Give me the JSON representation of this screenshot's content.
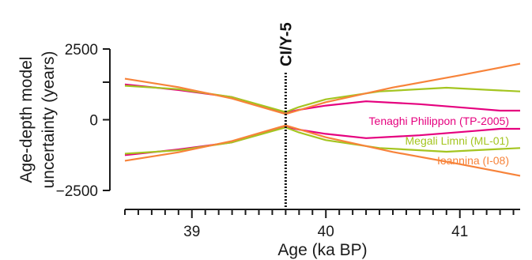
{
  "chart_data": {
    "type": "line",
    "title": "",
    "xlabel": "Age (ka BP)",
    "ylabel": [
      "Age-depth model",
      "uncertainty (years)"
    ],
    "xlim": [
      38.5,
      41.45
    ],
    "ylim": [
      -2500,
      2500
    ],
    "x_ticks": [
      39,
      40,
      41
    ],
    "x_tick_labels": [
      "39",
      "40",
      "41"
    ],
    "y_ticks": [
      -2500,
      0,
      2500
    ],
    "y_tick_labels": [
      "−2500",
      "0",
      "2500"
    ],
    "x_minor_step": 0.1,
    "grid": false,
    "legend": "inline labels at right",
    "marker": {
      "x": 39.7,
      "label": "CI/Y-5",
      "style": "dotted vertical line"
    },
    "series": [
      {
        "name": "Tenaghi Philippon (TP-2005)",
        "color": "#e5007e",
        "upper": {
          "x": [
            38.5,
            38.9,
            39.3,
            39.7,
            39.8,
            40.0,
            40.3,
            40.7,
            41.1,
            41.3,
            41.45
          ],
          "y": [
            1250,
            1050,
            800,
            250,
            350,
            500,
            650,
            550,
            400,
            320,
            320
          ]
        },
        "lower": {
          "x": [
            38.5,
            38.9,
            39.3,
            39.7,
            39.8,
            40.0,
            40.3,
            40.7,
            41.1,
            41.3,
            41.45
          ],
          "y": [
            -1250,
            -1050,
            -800,
            -250,
            -350,
            -500,
            -650,
            -550,
            -400,
            -320,
            -320
          ]
        }
      },
      {
        "name": "Megali Limni (ML-01)",
        "color": "#a4c520",
        "upper": {
          "x": [
            38.5,
            38.9,
            39.3,
            39.7,
            39.8,
            40.0,
            40.4,
            40.9,
            41.2,
            41.45
          ],
          "y": [
            1200,
            1080,
            800,
            270,
            450,
            720,
            1000,
            1130,
            1060,
            1000
          ]
        },
        "lower": {
          "x": [
            38.5,
            38.9,
            39.3,
            39.7,
            39.8,
            40.0,
            40.4,
            40.9,
            41.2,
            41.45
          ],
          "y": [
            -1200,
            -1080,
            -800,
            -270,
            -450,
            -720,
            -1000,
            -1130,
            -1060,
            -1000
          ]
        }
      },
      {
        "name": "Ioannina (I-08)",
        "color": "#f7833a",
        "upper": {
          "x": [
            38.5,
            38.9,
            39.3,
            39.7,
            40.0,
            40.5,
            41.0,
            41.45
          ],
          "y": [
            1450,
            1150,
            750,
            200,
            620,
            1140,
            1570,
            1980
          ]
        },
        "lower": {
          "x": [
            38.5,
            38.9,
            39.3,
            39.7,
            40.0,
            40.5,
            41.0,
            41.45
          ],
          "y": [
            -1450,
            -1150,
            -750,
            -200,
            -620,
            -1140,
            -1570,
            -1980
          ]
        }
      }
    ]
  }
}
